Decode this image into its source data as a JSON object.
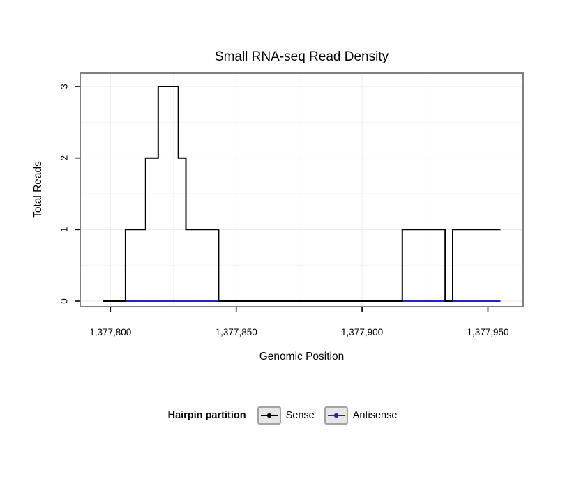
{
  "page": {
    "background": "#ffffff"
  },
  "chart_data": {
    "type": "line",
    "subtype": "step",
    "title": "Small RNA-seq Read Density",
    "xlabel": "Genomic Position",
    "ylabel": "Total Reads",
    "xlim": [
      1377788,
      1377964
    ],
    "ylim": [
      0,
      3
    ],
    "x_ticks": [
      1377800,
      1377850,
      1377900,
      1377950
    ],
    "x_tick_labels": [
      "1,377,800",
      "1,377,850",
      "1,377,900",
      "1,377,950"
    ],
    "y_ticks": [
      0,
      1,
      2,
      3
    ],
    "y_tick_labels": [
      "0",
      "1",
      "2",
      "3"
    ],
    "grid": true,
    "panel_border_color": "#808080",
    "gridline_major_color": "#e9e9e9",
    "gridline_minor_color": "#f5f5f5",
    "legend": {
      "title": "Hairpin partition",
      "position": "bottom",
      "entries": [
        {
          "label": "Sense",
          "color": "#000000"
        },
        {
          "label": "Antisense",
          "color": "#2222cc"
        }
      ]
    },
    "series": [
      {
        "name": "Sense",
        "color": "#000000",
        "step_points": [
          [
            1377797,
            0
          ],
          [
            1377806,
            0
          ],
          [
            1377806,
            1
          ],
          [
            1377814,
            1
          ],
          [
            1377814,
            2
          ],
          [
            1377819,
            2
          ],
          [
            1377819,
            3
          ],
          [
            1377827,
            3
          ],
          [
            1377827,
            2
          ],
          [
            1377830,
            2
          ],
          [
            1377830,
            1
          ],
          [
            1377843,
            1
          ],
          [
            1377843,
            0
          ],
          [
            1377916,
            0
          ],
          [
            1377916,
            1
          ],
          [
            1377933,
            1
          ],
          [
            1377933,
            0
          ],
          [
            1377936,
            0
          ],
          [
            1377936,
            1
          ],
          [
            1377955,
            1
          ]
        ]
      },
      {
        "name": "Antisense",
        "color": "#2222cc",
        "step_points": [
          [
            1377797,
            0
          ],
          [
            1377955,
            0
          ]
        ]
      }
    ]
  }
}
